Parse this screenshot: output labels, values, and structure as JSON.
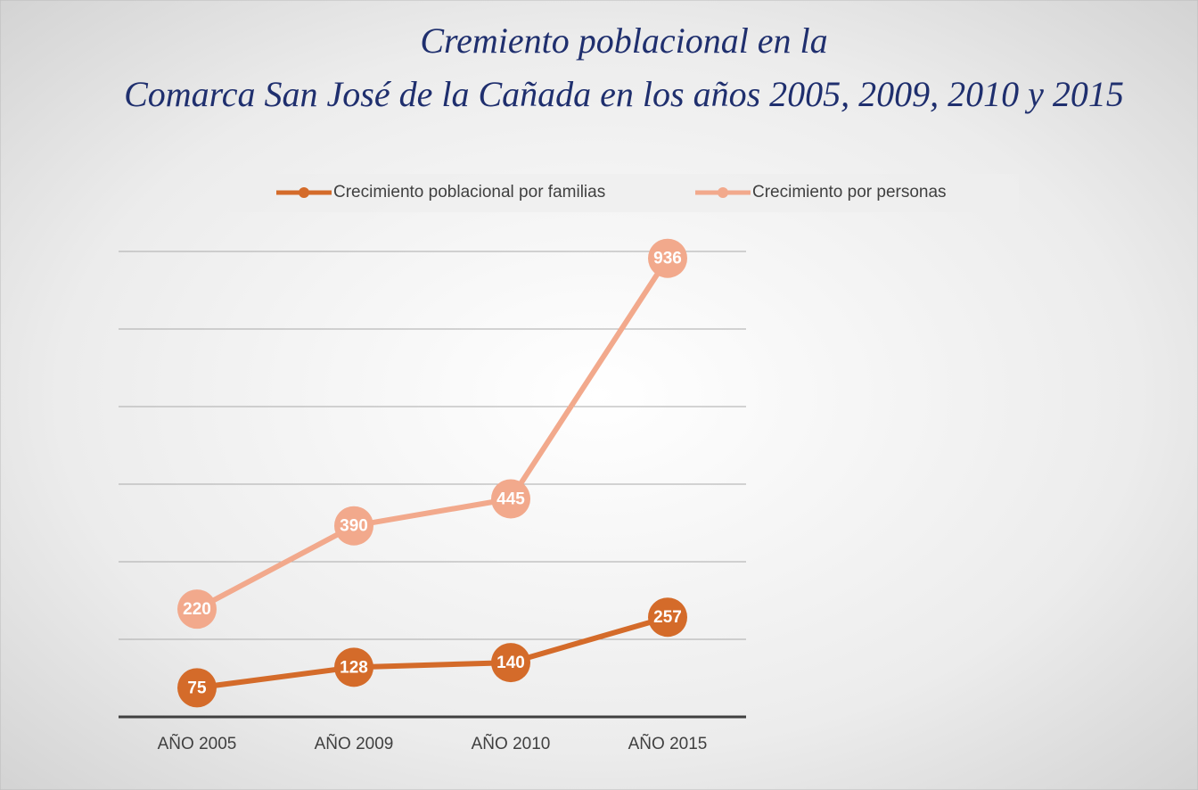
{
  "chart_data": {
    "type": "line",
    "title": [
      "Cremiento poblacional en la",
      "Comarca San José de la Cañada en los años 2005, 2009, 2010 y 2015"
    ],
    "categories": [
      "AÑO 2005",
      "AÑO 2009",
      "AÑO 2010",
      "AÑO 2015"
    ],
    "series": [
      {
        "name": "Crecimiento poblacional por familias",
        "color": "#d46b2a",
        "values": [
          75,
          128,
          140,
          257
        ]
      },
      {
        "name": "Crecimiento por personas",
        "color": "#f2a98c",
        "values": [
          220,
          390,
          445,
          936
        ],
        "axis": "y2"
      }
    ],
    "ylim": [
      0,
      1200
    ],
    "yticks": [
      0,
      200,
      400,
      600,
      800,
      1000,
      1200
    ],
    "y2lim": [
      0,
      950
    ],
    "grid": true,
    "legend": "top"
  }
}
